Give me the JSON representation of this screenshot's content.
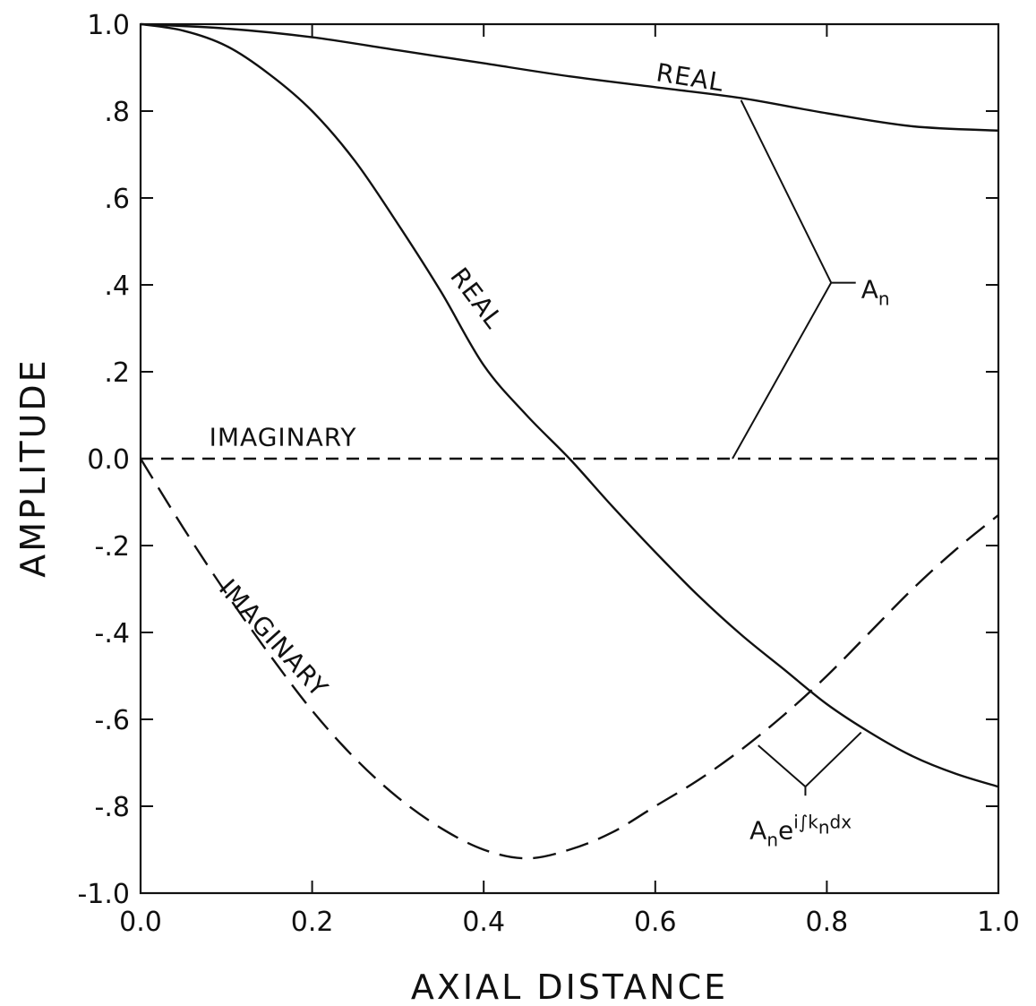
{
  "chart_data": {
    "type": "line",
    "title": "",
    "xlabel": "AXIAL DISTANCE",
    "ylabel": "AMPLITUDE",
    "xlim": [
      0.0,
      1.0
    ],
    "ylim": [
      -1.0,
      1.0
    ],
    "x_ticks": [
      "0.0",
      "0.2",
      "0.4",
      "0.6",
      "0.8",
      "1.0"
    ],
    "x_tick_values": [
      0.0,
      0.2,
      0.4,
      0.6,
      0.8,
      1.0
    ],
    "y_ticks": [
      "1.0",
      ".8",
      ".6",
      ".4",
      ".2",
      "0.0",
      "-.2",
      "-.4",
      "-.6",
      "-.8",
      "-1.0"
    ],
    "y_tick_values": [
      1.0,
      0.8,
      0.6,
      0.4,
      0.2,
      0.0,
      -0.2,
      -0.4,
      -0.6,
      -0.8,
      -1.0
    ],
    "grid": false,
    "series": [
      {
        "name": "REAL",
        "group": "A_n",
        "style": "solid",
        "x": [
          0.0,
          0.1,
          0.2,
          0.3,
          0.4,
          0.5,
          0.6,
          0.7,
          0.8,
          0.9,
          1.0
        ],
        "y": [
          1.0,
          0.99,
          0.97,
          0.94,
          0.91,
          0.88,
          0.855,
          0.83,
          0.795,
          0.765,
          0.755
        ]
      },
      {
        "name": "IMAGINARY",
        "group": "A_n",
        "style": "dashed",
        "x": [
          0.0,
          0.2,
          0.4,
          0.6,
          0.8,
          1.0
        ],
        "y": [
          0.0,
          0.0,
          0.0,
          0.0,
          0.0,
          0.0
        ]
      },
      {
        "name": "REAL",
        "group": "A_n e^{i∫k_n dx}",
        "style": "solid",
        "x": [
          0.0,
          0.05,
          0.1,
          0.15,
          0.2,
          0.25,
          0.3,
          0.35,
          0.4,
          0.45,
          0.5,
          0.55,
          0.6,
          0.65,
          0.7,
          0.75,
          0.8,
          0.85,
          0.9,
          0.95,
          1.0
        ],
        "y": [
          1.0,
          0.985,
          0.95,
          0.885,
          0.8,
          0.685,
          0.54,
          0.385,
          0.215,
          0.1,
          0.0,
          -0.11,
          -0.215,
          -0.315,
          -0.405,
          -0.485,
          -0.565,
          -0.63,
          -0.685,
          -0.725,
          -0.755
        ]
      },
      {
        "name": "IMAGINARY",
        "group": "A_n e^{i∫k_n dx}",
        "style": "dashed",
        "x": [
          0.0,
          0.05,
          0.1,
          0.15,
          0.2,
          0.25,
          0.3,
          0.35,
          0.4,
          0.45,
          0.5,
          0.55,
          0.6,
          0.65,
          0.7,
          0.75,
          0.8,
          0.85,
          0.9,
          0.95,
          1.0
        ],
        "y": [
          0.0,
          -0.16,
          -0.31,
          -0.45,
          -0.58,
          -0.69,
          -0.78,
          -0.85,
          -0.9,
          -0.92,
          -0.9,
          -0.86,
          -0.8,
          -0.74,
          -0.67,
          -0.59,
          -0.5,
          -0.4,
          -0.3,
          -0.21,
          -0.13
        ]
      }
    ],
    "curve_labels": [
      {
        "text": "REAL",
        "x": 0.6,
        "y": 0.87,
        "angle": 9
      },
      {
        "text": "REAL",
        "x": 0.36,
        "y": 0.42,
        "angle": 53
      },
      {
        "text": "IMAGINARY",
        "x": 0.08,
        "y": 0.03,
        "angle": 0
      },
      {
        "text": "IMAGINARY",
        "x": 0.09,
        "y": -0.3,
        "angle": 48
      }
    ],
    "annotations": [
      {
        "base": "A",
        "sub": "n",
        "suffix": "",
        "label_x": 0.84,
        "label_y": 0.37,
        "joint_x": 0.805,
        "joint_y": 0.405,
        "targets": [
          [
            0.7,
            0.825
          ],
          [
            0.69,
            0.0
          ]
        ]
      },
      {
        "base": "A",
        "sub": "n",
        "suffix": "e",
        "exp_text": "i∫k",
        "exp_sub": "n",
        "exp_tail": "dx",
        "label_x": 0.71,
        "label_y": -0.875,
        "joint_x": 0.775,
        "joint_y": -0.755,
        "targets": [
          [
            0.72,
            -0.66
          ],
          [
            0.84,
            -0.63
          ]
        ]
      }
    ]
  }
}
